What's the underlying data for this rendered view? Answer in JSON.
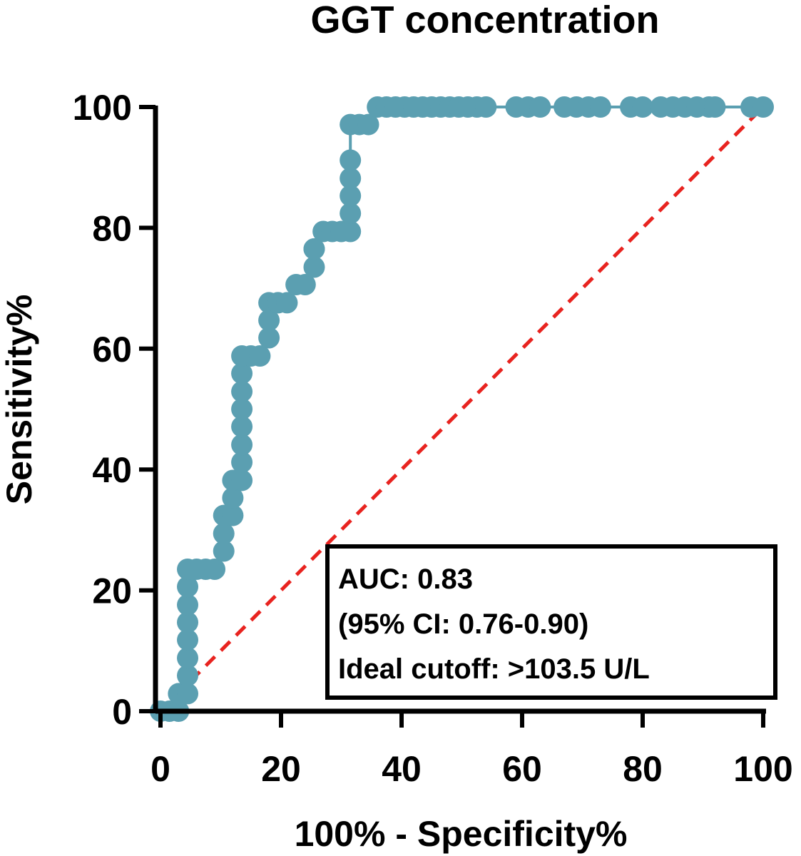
{
  "chart_data": {
    "type": "line",
    "title": "GGT concentration",
    "xlabel": "100% - Specificity%",
    "ylabel": "Sensitivity%",
    "xlim": [
      0,
      100
    ],
    "ylim": [
      0,
      100
    ],
    "xticks": [
      "0",
      "20",
      "40",
      "60",
      "80",
      "100"
    ],
    "yticks": [
      "0",
      "20",
      "40",
      "60",
      "80",
      "100"
    ],
    "grid": false,
    "series": [
      {
        "name": "",
        "color": "#5b9fb1",
        "marker": "circle",
        "x": [
          0,
          1.5,
          3,
          3,
          4.5,
          4.5,
          4.5,
          4.5,
          4.5,
          4.5,
          4.5,
          4.5,
          6,
          7.5,
          9,
          10.5,
          10.5,
          10.5,
          12,
          12,
          12,
          13.5,
          13.5,
          13.5,
          13.5,
          13.5,
          13.5,
          13.5,
          13.5,
          15,
          16.5,
          18,
          18,
          18,
          19.5,
          19.5,
          21,
          22.5,
          24,
          25.5,
          25.5,
          25.5,
          27,
          28.5,
          30,
          31.5,
          31.5,
          31.5,
          31.5,
          31.5,
          31.5,
          33,
          34.5,
          36,
          37.5,
          39,
          40.5,
          42,
          43.5,
          45,
          46.5,
          48,
          49.5,
          51,
          52.5,
          54,
          59,
          61,
          63,
          67,
          69,
          71,
          73,
          78,
          80,
          83,
          85,
          87,
          89,
          91,
          92,
          98,
          100
        ],
        "y": [
          0,
          0,
          0,
          2.9,
          2.9,
          5.9,
          8.8,
          11.8,
          14.7,
          17.6,
          20.6,
          23.5,
          23.5,
          23.5,
          23.5,
          26.5,
          29.4,
          32.4,
          32.4,
          35.3,
          38.2,
          38.2,
          41.2,
          44.1,
          47.1,
          50,
          52.9,
          55.9,
          58.8,
          58.8,
          58.8,
          61.8,
          64.7,
          67.6,
          67.6,
          67.6,
          67.6,
          70.6,
          70.6,
          73.5,
          76.5,
          76.5,
          79.4,
          79.4,
          79.4,
          79.4,
          82.4,
          85.3,
          88.2,
          91.2,
          97.1,
          97.1,
          97.1,
          100,
          100,
          100,
          100,
          100,
          100,
          100,
          100,
          100,
          100,
          100,
          100,
          100,
          100,
          100,
          100,
          100,
          100,
          100,
          100,
          100,
          100,
          100,
          100,
          100,
          100,
          100,
          100,
          100,
          100
        ]
      }
    ],
    "reference_line": {
      "x": [
        0,
        100
      ],
      "y": [
        0,
        100
      ],
      "color": "#e8231f",
      "style": "dashed"
    },
    "annotation": {
      "lines": [
        "AUC: 0.83",
        "(95% CI: 0.76-0.90)",
        "Ideal cutoff: >103.5 U/L"
      ],
      "placement": "bottom-right"
    }
  }
}
